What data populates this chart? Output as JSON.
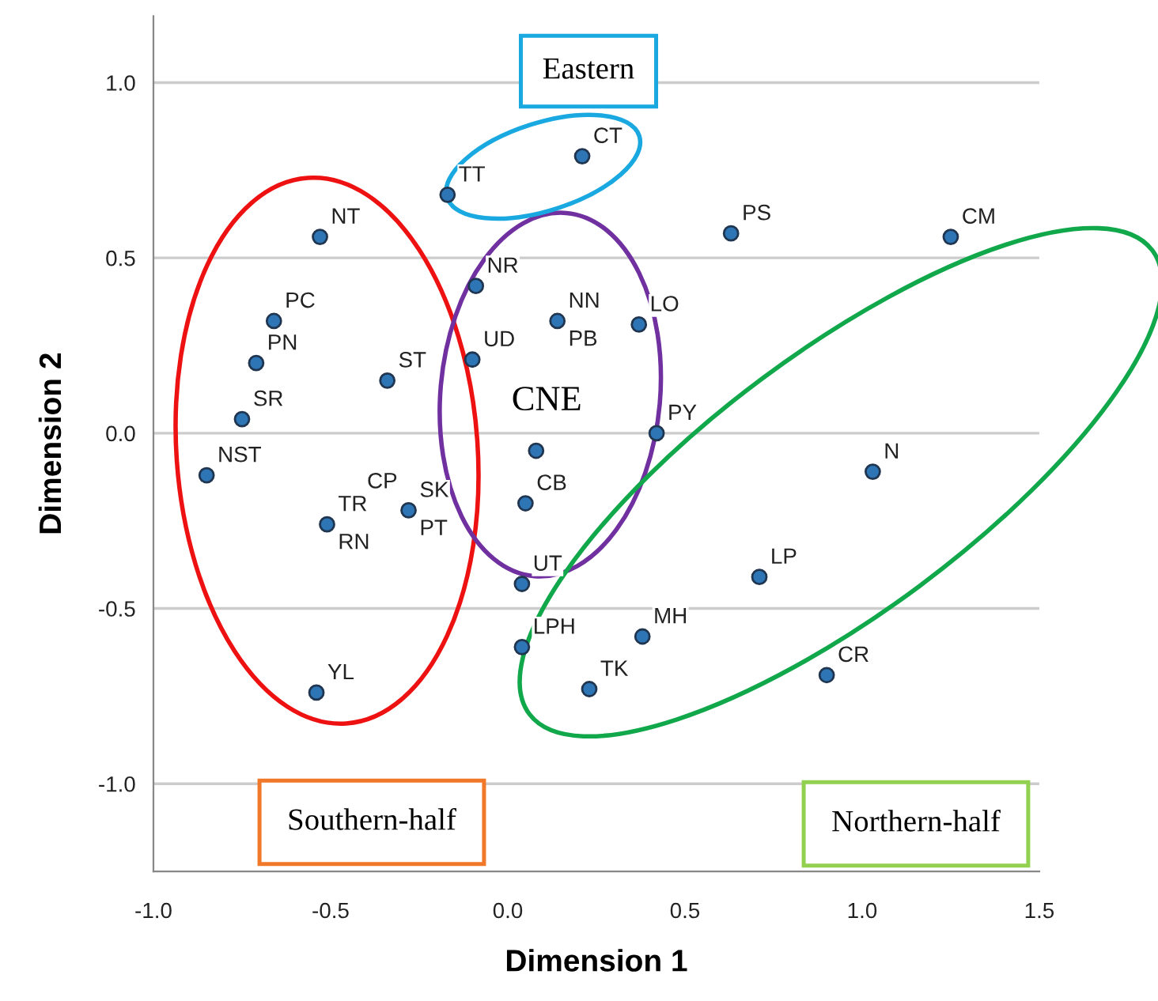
{
  "chart_data": {
    "type": "scatter",
    "xlabel": "Dimension 1",
    "ylabel": "Dimension 2",
    "x": [
      0.21,
      -0.17,
      -0.53,
      0.63,
      1.25,
      -0.09,
      -0.66,
      0.14,
      0.37,
      -0.71,
      -0.1,
      -0.34,
      -0.75,
      0.42,
      0.08,
      -0.85,
      1.03,
      -0.28,
      0.05,
      -0.51,
      0.04,
      0.71,
      0.38,
      0.04,
      0.23,
      0.9,
      -0.54
    ],
    "values": [
      0.79,
      0.68,
      0.56,
      0.57,
      0.56,
      0.42,
      0.32,
      0.32,
      0.31,
      0.2,
      0.21,
      0.15,
      0.04,
      0.0,
      -0.05,
      -0.12,
      -0.11,
      -0.22,
      -0.2,
      -0.26,
      -0.43,
      -0.41,
      -0.58,
      -0.61,
      -0.73,
      -0.69,
      -0.74
    ],
    "color": "#2e75b6",
    "marker": "circle",
    "xlim": [
      -1.0,
      1.5
    ],
    "ylim": [
      -1.25,
      1.19
    ],
    "xticks": [
      {
        "value": -1.0,
        "label": "-1.0"
      },
      {
        "value": -0.5,
        "label": "-0.5"
      },
      {
        "value": 0.0,
        "label": "0.0"
      },
      {
        "value": 0.5,
        "label": "0.5"
      },
      {
        "value": 1.0,
        "label": "1.0"
      },
      {
        "value": 1.5,
        "label": "1.5"
      }
    ],
    "yticks": [
      {
        "value": 1.0,
        "label": "1.0"
      },
      {
        "value": 0.5,
        "label": "0.5"
      },
      {
        "value": 0.0,
        "label": "0.0"
      },
      {
        "value": -0.5,
        "label": "-0.5"
      },
      {
        "value": -1.0,
        "label": "-1.0"
      }
    ],
    "grid": "y",
    "annotations": [
      "Eastern",
      "Southern-half",
      "Northern-half",
      "CNE",
      {
        "text": "CT",
        "x": 0.21,
        "y": 0.79
      },
      {
        "text": "TT",
        "x": -0.17,
        "y": 0.68
      },
      {
        "text": "NT",
        "x": -0.53,
        "y": 0.56
      },
      {
        "text": "PS",
        "x": 0.63,
        "y": 0.57
      },
      {
        "text": "CM",
        "x": 1.25,
        "y": 0.56
      },
      {
        "text": "NR",
        "x": -0.09,
        "y": 0.42
      },
      {
        "text": "PC",
        "x": -0.66,
        "y": 0.32
      },
      {
        "text": "NN",
        "x": 0.14,
        "y": 0.32
      },
      {
        "text": "PB",
        "x": 0.14,
        "y": 0.32
      },
      {
        "text": "LO",
        "x": 0.37,
        "y": 0.31
      },
      {
        "text": "PN",
        "x": -0.71,
        "y": 0.2
      },
      {
        "text": "UD",
        "x": -0.1,
        "y": 0.21
      },
      {
        "text": "ST",
        "x": -0.34,
        "y": 0.15
      },
      {
        "text": "SR",
        "x": -0.75,
        "y": 0.04
      },
      {
        "text": "PY",
        "x": 0.42,
        "y": 0.0
      },
      {
        "text": "NST",
        "x": -0.85,
        "y": -0.12
      },
      {
        "text": "N",
        "x": 1.03,
        "y": -0.11
      },
      {
        "text": "SK",
        "x": -0.28,
        "y": -0.22
      },
      {
        "text": "PT",
        "x": -0.28,
        "y": -0.22
      },
      {
        "text": "CP",
        "x": -0.28,
        "y": -0.22
      },
      {
        "text": "CB",
        "x": 0.05,
        "y": -0.2
      },
      {
        "text": "TR",
        "x": -0.51,
        "y": -0.26
      },
      {
        "text": "RN",
        "x": -0.51,
        "y": -0.26
      },
      {
        "text": "UT",
        "x": 0.04,
        "y": -0.43
      },
      {
        "text": "LP",
        "x": 0.71,
        "y": -0.41
      },
      {
        "text": "MH",
        "x": 0.38,
        "y": -0.58
      },
      {
        "text": "LPH",
        "x": 0.04,
        "y": -0.61
      },
      {
        "text": "TK",
        "x": 0.23,
        "y": -0.73
      },
      {
        "text": "CR",
        "x": 0.9,
        "y": -0.69
      },
      {
        "text": "YL",
        "x": -0.54,
        "y": -0.74
      }
    ]
  }
}
